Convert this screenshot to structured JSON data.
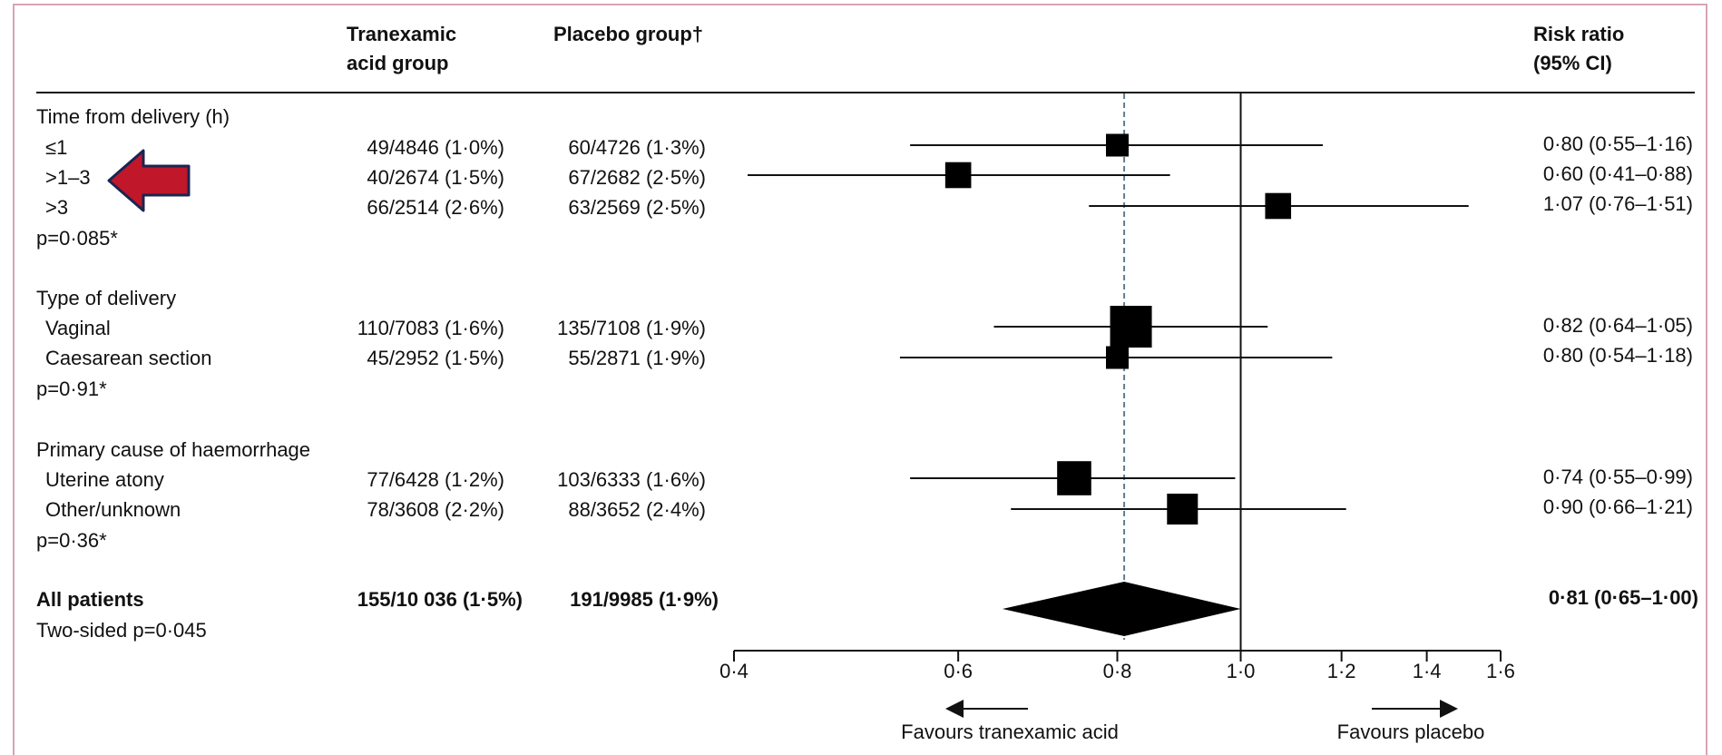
{
  "columns": {
    "tranexamic": "Tranexamic acid group",
    "placebo": "Placebo group†",
    "risk_ratio": "Risk ratio (95% CI)"
  },
  "groups": [
    {
      "title": "Time from delivery (h)",
      "p": "p=0·085*",
      "rows": [
        {
          "label": "≤1",
          "txa": "49/4846 (1·0%)",
          "placebo": "60/4726 (1·3%)",
          "rr_text": "0·80 (0·55–1·16)"
        },
        {
          "label": ">1–3",
          "txa": "40/2674 (1·5%)",
          "placebo": "67/2682 (2·5%)",
          "rr_text": "0·60 (0·41–0·88)"
        },
        {
          "label": ">3",
          "txa": "66/2514 (2·6%)",
          "placebo": "63/2569 (2·5%)",
          "rr_text": "1·07 (0·76–1·51)"
        }
      ]
    },
    {
      "title": "Type of delivery",
      "p": "p=0·91*",
      "rows": [
        {
          "label": "Vaginal",
          "txa": "110/7083 (1·6%)",
          "placebo": "135/7108 (1·9%)",
          "rr_text": "0·82 (0·64–1·05)"
        },
        {
          "label": "Caesarean section",
          "txa": "45/2952 (1·5%)",
          "placebo": "55/2871 (1·9%)",
          "rr_text": "0·80 (0·54–1·18)"
        }
      ]
    },
    {
      "title": "Primary cause of haemorrhage",
      "p": "p=0·36*",
      "rows": [
        {
          "label": "Uterine atony",
          "txa": "77/6428 (1·2%)",
          "placebo": "103/6333 (1·6%)",
          "rr_text": "0·74 (0·55–0·99)"
        },
        {
          "label": "Other/unknown",
          "txa": "78/3608 (2·2%)",
          "placebo": "88/3652 (2·4%)",
          "rr_text": "0·90 (0·66–1·21)"
        }
      ]
    }
  ],
  "overall": {
    "label": "All patients",
    "p": "Two-sided p=0·045",
    "txa": "155/10 036 (1·5%)",
    "placebo": "191/9985 (1·9%)",
    "rr_text": "0·81 (0·65–1·00)"
  },
  "axis": {
    "ticks": [
      0.4,
      0.6,
      0.8,
      1.0,
      1.2,
      1.4,
      1.6
    ],
    "tick_labels": [
      "0·4",
      "0·6",
      "0·8",
      "1·0",
      "1·2",
      "1·4",
      "1·6"
    ],
    "favours_left": "Favours tranexamic acid",
    "favours_right": "Favours placebo"
  },
  "annotation_arrow": {
    "icon": "left-arrow-icon",
    "color": "#c0172a",
    "outline": "#1b2550",
    "points_to": ">1–3"
  },
  "chart_data": {
    "type": "forest",
    "xscale": "log",
    "xlim": [
      0.4,
      1.6
    ],
    "reference_line": 1.0,
    "pooled_reference": 0.81,
    "points": [
      {
        "label": "≤1",
        "rr": 0.8,
        "lo": 0.55,
        "hi": 1.16,
        "weight": 0.3
      },
      {
        "label": ">1–3",
        "rr": 0.6,
        "lo": 0.41,
        "hi": 0.88,
        "weight": 0.42
      },
      {
        "label": ">3",
        "rr": 1.07,
        "lo": 0.76,
        "hi": 1.51,
        "weight": 0.42
      },
      {
        "label": "Vaginal",
        "rr": 0.82,
        "lo": 0.64,
        "hi": 1.05,
        "weight": 1.0
      },
      {
        "label": "Caesarean section",
        "rr": 0.8,
        "lo": 0.54,
        "hi": 1.18,
        "weight": 0.3
      },
      {
        "label": "Uterine atony",
        "rr": 0.74,
        "lo": 0.55,
        "hi": 0.99,
        "weight": 0.72
      },
      {
        "label": "Other/unknown",
        "rr": 0.9,
        "lo": 0.66,
        "hi": 1.21,
        "weight": 0.6
      }
    ],
    "overall": {
      "label": "All patients",
      "rr": 0.81,
      "lo": 0.65,
      "hi": 1.0
    }
  }
}
